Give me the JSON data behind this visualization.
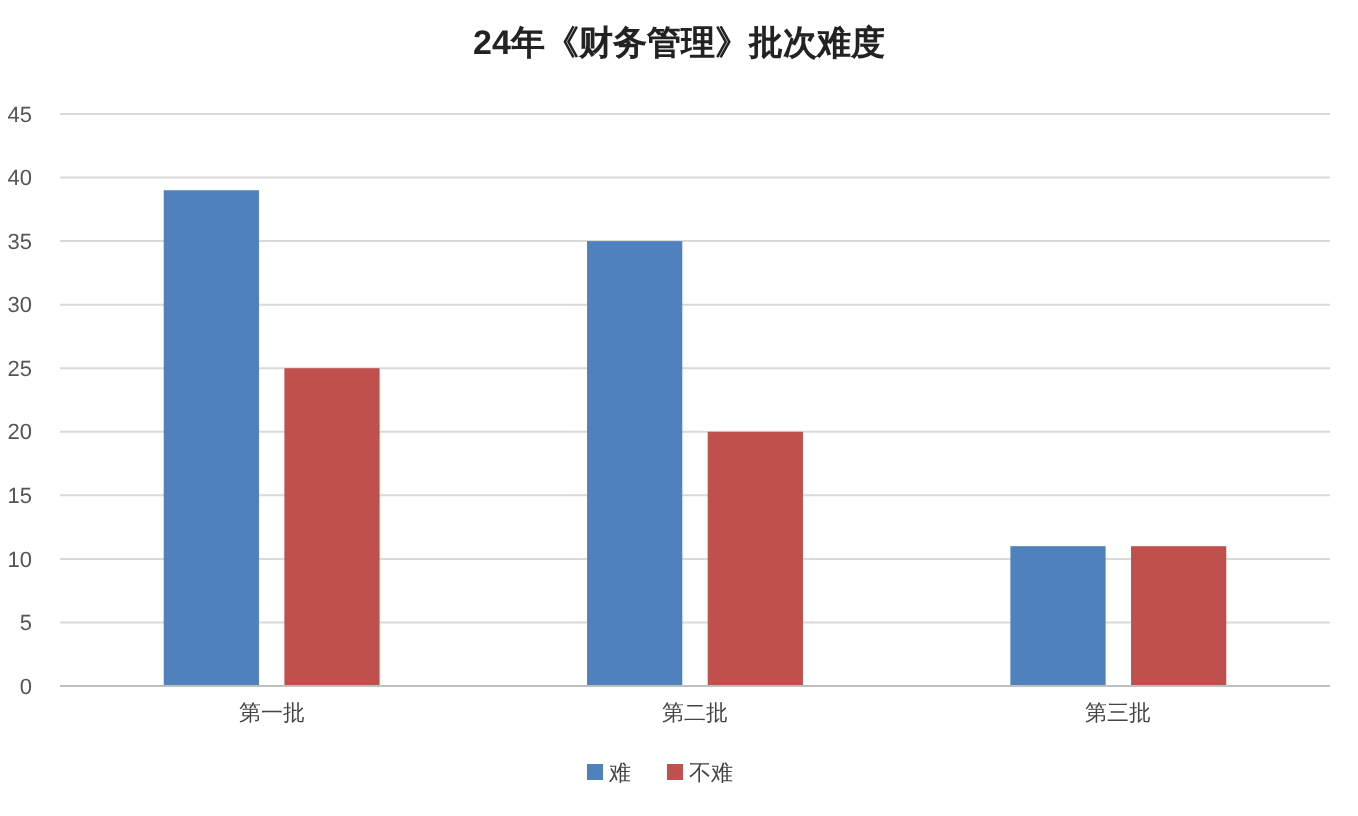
{
  "chart_data": {
    "type": "bar",
    "title": "24年《财务管理》批次难度",
    "categories": [
      "第一批",
      "第二批",
      "第三批"
    ],
    "series": [
      {
        "name": "难",
        "color": "#4f81bd",
        "values": [
          39,
          35,
          11
        ]
      },
      {
        "name": "不难",
        "color": "#c0504d",
        "values": [
          25,
          20,
          11
        ]
      }
    ],
    "ylim": [
      0,
      45
    ],
    "yticks": [
      0,
      5,
      10,
      15,
      20,
      25,
      30,
      35,
      40,
      45
    ],
    "grid": "y",
    "legend": "bottom"
  }
}
